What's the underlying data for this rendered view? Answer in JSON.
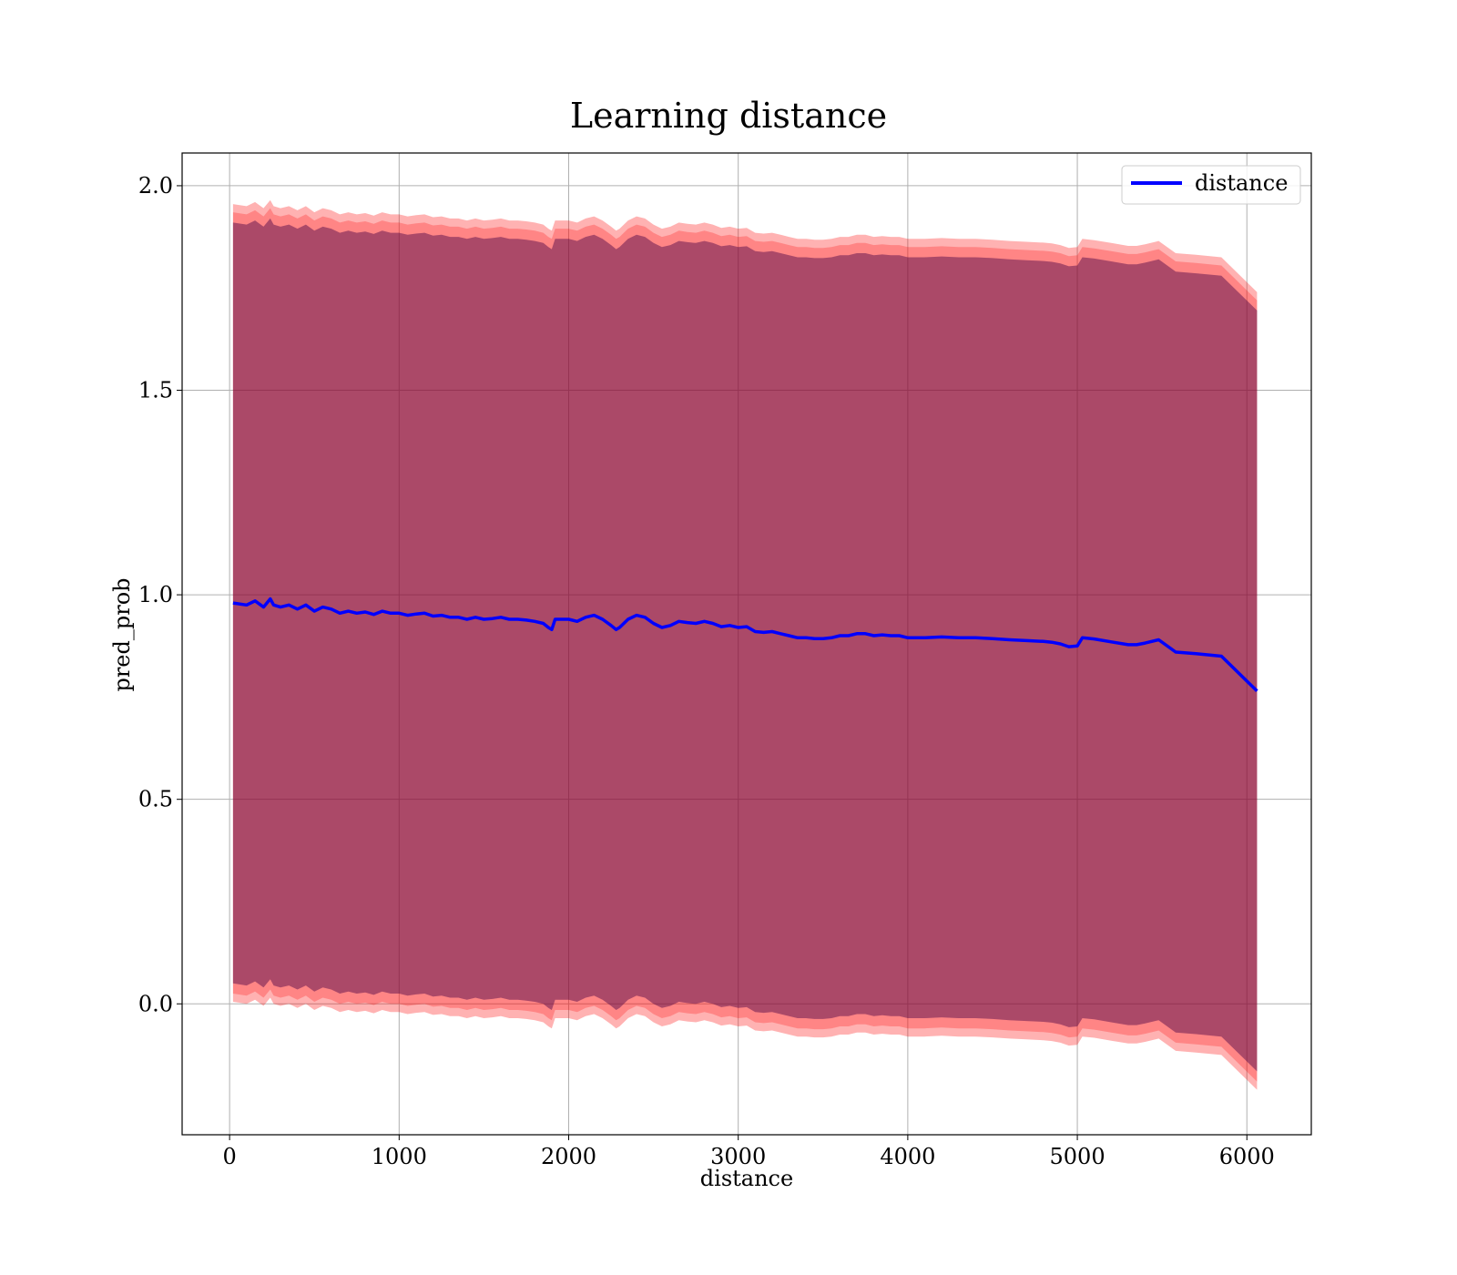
{
  "chart_data": {
    "type": "line",
    "title": "Learning distance",
    "xlabel": "distance",
    "ylabel": "pred_prob",
    "xlim": [
      -280,
      6380
    ],
    "ylim": [
      -0.32,
      2.08
    ],
    "x_ticks": [
      0,
      1000,
      2000,
      3000,
      4000,
      5000,
      6000
    ],
    "y_ticks": [
      0.0,
      0.5,
      1.0,
      1.5,
      2.0
    ],
    "x_tick_labels": [
      "0",
      "1000",
      "2000",
      "3000",
      "4000",
      "5000",
      "6000"
    ],
    "y_tick_labels": [
      "0.0",
      "0.5",
      "1.0",
      "1.5",
      "2.0"
    ],
    "grid": true,
    "legend_position": "top-right",
    "series": [
      {
        "name": "distance",
        "color": "#0000ff",
        "x": [
          20,
          100,
          150,
          200,
          240,
          260,
          300,
          350,
          400,
          450,
          500,
          550,
          600,
          650,
          700,
          750,
          800,
          850,
          900,
          950,
          1000,
          1050,
          1100,
          1150,
          1200,
          1250,
          1300,
          1350,
          1400,
          1450,
          1500,
          1550,
          1600,
          1650,
          1700,
          1750,
          1800,
          1850,
          1880,
          1900,
          1920,
          1950,
          2000,
          2050,
          2100,
          2150,
          2200,
          2250,
          2280,
          2300,
          2350,
          2400,
          2450,
          2500,
          2550,
          2600,
          2650,
          2700,
          2750,
          2800,
          2850,
          2900,
          2950,
          3000,
          3050,
          3100,
          3150,
          3200,
          3250,
          3300,
          3350,
          3400,
          3450,
          3500,
          3550,
          3600,
          3650,
          3700,
          3750,
          3800,
          3850,
          3900,
          3950,
          4000,
          4100,
          4200,
          4300,
          4400,
          4500,
          4600,
          4700,
          4800,
          4850,
          4900,
          4950,
          5000,
          5030,
          5100,
          5200,
          5300,
          5350,
          5400,
          5480,
          5580,
          5700,
          5850,
          6060
        ],
        "y": [
          0.98,
          0.975,
          0.985,
          0.97,
          0.99,
          0.975,
          0.97,
          0.975,
          0.965,
          0.975,
          0.96,
          0.97,
          0.965,
          0.955,
          0.96,
          0.955,
          0.958,
          0.952,
          0.96,
          0.955,
          0.955,
          0.95,
          0.953,
          0.955,
          0.948,
          0.95,
          0.945,
          0.945,
          0.94,
          0.945,
          0.94,
          0.942,
          0.945,
          0.94,
          0.94,
          0.938,
          0.935,
          0.93,
          0.92,
          0.915,
          0.94,
          0.94,
          0.94,
          0.935,
          0.945,
          0.95,
          0.94,
          0.925,
          0.915,
          0.92,
          0.94,
          0.95,
          0.945,
          0.93,
          0.92,
          0.925,
          0.935,
          0.932,
          0.93,
          0.935,
          0.93,
          0.922,
          0.925,
          0.92,
          0.922,
          0.91,
          0.908,
          0.91,
          0.905,
          0.9,
          0.895,
          0.895,
          0.893,
          0.893,
          0.895,
          0.9,
          0.9,
          0.905,
          0.905,
          0.9,
          0.902,
          0.9,
          0.9,
          0.895,
          0.895,
          0.897,
          0.895,
          0.895,
          0.893,
          0.89,
          0.888,
          0.886,
          0.884,
          0.88,
          0.873,
          0.875,
          0.895,
          0.892,
          0.885,
          0.878,
          0.878,
          0.882,
          0.89,
          0.86,
          0.856,
          0.85,
          0.765
        ]
      }
    ],
    "bands": [
      {
        "color": "#ff0000",
        "opacity": 0.3,
        "upper_offset": 0.975,
        "lower_offset": 0.975
      },
      {
        "color": "#ff0000",
        "opacity": 0.25,
        "upper_offset": 0.955,
        "lower_offset": 0.955
      },
      {
        "color": "#550080",
        "opacity": 0.25,
        "upper_offset": 0.93,
        "lower_offset": 0.93
      },
      {
        "color": "#4b0d2a",
        "opacity": 0.3,
        "upper_offset": 0.93,
        "lower_offset": 0.93
      }
    ]
  }
}
